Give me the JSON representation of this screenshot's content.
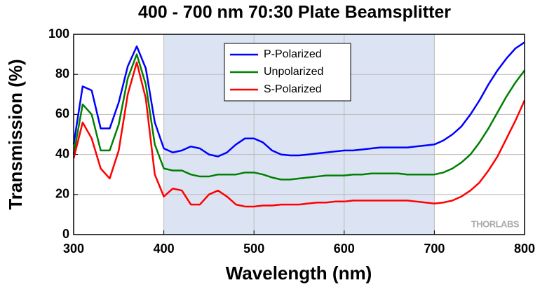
{
  "chart_data": {
    "type": "line",
    "title": "400 - 700 nm 70:30 Plate Beamsplitter",
    "x_label": "Wavelength (nm)",
    "y_label": "Transmission (%)",
    "annotation": "THORLABS",
    "shaded_region": [
      400,
      700
    ],
    "shaded_color": "#dce4f4",
    "x": [
      300,
      310,
      320,
      330,
      340,
      350,
      360,
      370,
      380,
      390,
      400,
      410,
      420,
      430,
      440,
      450,
      460,
      470,
      480,
      490,
      500,
      510,
      520,
      530,
      540,
      550,
      560,
      570,
      580,
      590,
      600,
      610,
      620,
      630,
      640,
      650,
      660,
      670,
      680,
      690,
      700,
      710,
      720,
      730,
      740,
      750,
      760,
      770,
      780,
      790,
      800
    ],
    "series": [
      {
        "name": "P-Polarized",
        "color": "#0000ff",
        "values": [
          45,
          74,
          72,
          53,
          53,
          66,
          84,
          94,
          83,
          56,
          43,
          41,
          42,
          44,
          43,
          40,
          39,
          41,
          45,
          48,
          48,
          46,
          42,
          40,
          39.5,
          39.5,
          40,
          40.5,
          41,
          41.5,
          42,
          42,
          42.5,
          43,
          43.5,
          43.5,
          43.5,
          43.5,
          44,
          44.5,
          45,
          47,
          50,
          54,
          60,
          67,
          75,
          82,
          88,
          93,
          96
        ]
      },
      {
        "name": "Unpolarized",
        "color": "#008000",
        "values": [
          40,
          65,
          60,
          42,
          42,
          55,
          78,
          90,
          75,
          45,
          33,
          32,
          32,
          30,
          29,
          29,
          30,
          30,
          30,
          31,
          31,
          30,
          28.5,
          27.5,
          27.5,
          28,
          28.5,
          29,
          29.5,
          29.5,
          29.5,
          30,
          30,
          30.5,
          30.5,
          30.5,
          30.5,
          30,
          30,
          30,
          30,
          31,
          33,
          36,
          40,
          46,
          53,
          61,
          69,
          76,
          82
        ]
      },
      {
        "name": "S-Polarized",
        "color": "#ff0000",
        "values": [
          38,
          56,
          48,
          33,
          28,
          42,
          70,
          86,
          68,
          30,
          19,
          23,
          22,
          15,
          15,
          20,
          22,
          19,
          15,
          14,
          14,
          14.5,
          14.5,
          15,
          15,
          15,
          15.5,
          16,
          16,
          16.5,
          16.5,
          17,
          17,
          17,
          17,
          17,
          17,
          17,
          16.5,
          16,
          15.5,
          16,
          17,
          19,
          22,
          26,
          32,
          39,
          48,
          57,
          67
        ]
      }
    ],
    "xlim": [
      300,
      800
    ],
    "xticks": [
      300,
      400,
      500,
      600,
      700,
      800
    ],
    "ylim": [
      0,
      100
    ],
    "yticks": [
      0,
      20,
      40,
      60,
      80,
      100
    ],
    "grid": true,
    "legend": "top"
  }
}
